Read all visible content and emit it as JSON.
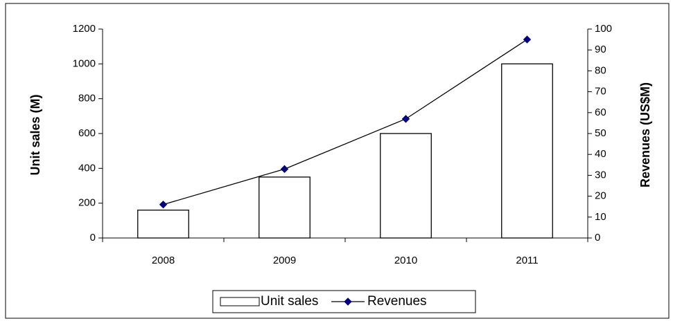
{
  "chart_data": {
    "type": "bar",
    "categories": [
      "2008",
      "2009",
      "2010",
      "2011"
    ],
    "series": [
      {
        "name": "Unit sales",
        "type": "bar",
        "color": "#ffffff",
        "values": [
          160,
          350,
          600,
          1000
        ]
      },
      {
        "name": "Revenues",
        "type": "line",
        "axis": "y2",
        "color": "#000080",
        "values": [
          16,
          33,
          57,
          95
        ]
      }
    ],
    "y_label": "Unit sales (M)",
    "y2_label": "Revenues (US$M)",
    "ylim": [
      0,
      1200
    ],
    "yticks": [
      0,
      200,
      400,
      600,
      800,
      1000,
      1200
    ],
    "y2lim": [
      0,
      100
    ],
    "y2ticks": [
      0,
      10,
      20,
      30,
      40,
      50,
      60,
      70,
      80,
      90,
      100
    ],
    "grid": false,
    "legend": "bottom"
  }
}
